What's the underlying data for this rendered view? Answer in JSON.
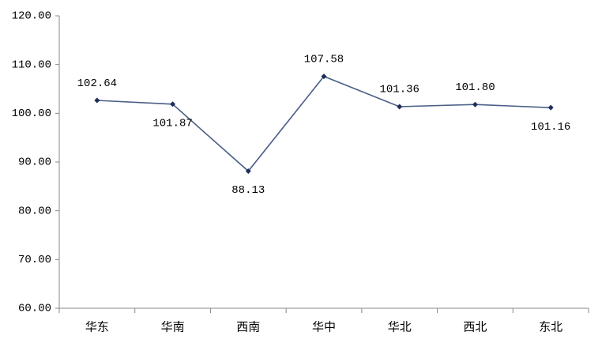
{
  "chart_data": {
    "type": "line",
    "categories": [
      "华东",
      "华南",
      "西南",
      "华中",
      "华北",
      "西北",
      "东北"
    ],
    "series": [
      {
        "color": "#4a5f86",
        "values": [
          102.64,
          101.87,
          88.13,
          107.58,
          101.36,
          101.8,
          101.16
        ],
        "value_labels": [
          "102.64",
          "101.87",
          "88.13",
          "107.58",
          "101.36",
          "101.80",
          "101.16"
        ]
      }
    ],
    "ylim": [
      60,
      120
    ],
    "yticks": [
      {
        "value": 60,
        "label": "60.00"
      },
      {
        "value": 70,
        "label": "70.00"
      },
      {
        "value": 80,
        "label": "80.00"
      },
      {
        "value": 90,
        "label": "90.00"
      },
      {
        "value": 100,
        "label": "100.00"
      },
      {
        "value": 110,
        "label": "110.00"
      },
      {
        "value": 120,
        "label": "120.00"
      }
    ],
    "grid": false
  }
}
